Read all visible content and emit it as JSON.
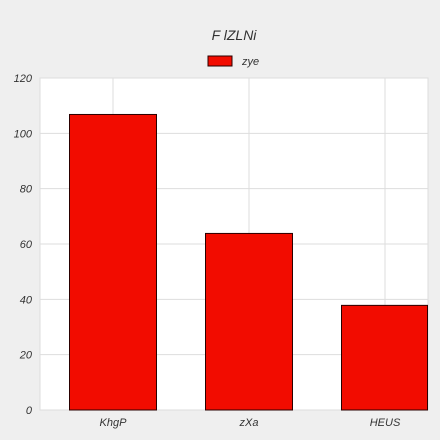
{
  "chart_data": {
    "type": "bar",
    "title": "F lZLNi",
    "categories": [
      "KhgP",
      "zXa",
      "HEUS"
    ],
    "series": [
      {
        "name": "zye",
        "values": [
          107,
          64,
          38
        ]
      }
    ],
    "ylim": [
      0,
      120
    ],
    "yticks": [
      0,
      20,
      40,
      60,
      80,
      100,
      120
    ],
    "grid": true,
    "legend": "top-center",
    "colors": {
      "bar_fill": "#f20c00",
      "bar_stroke": "#2a0000",
      "grid": "#dddddd",
      "plot_background": "#ffffff",
      "page_background": "#efefef"
    }
  }
}
